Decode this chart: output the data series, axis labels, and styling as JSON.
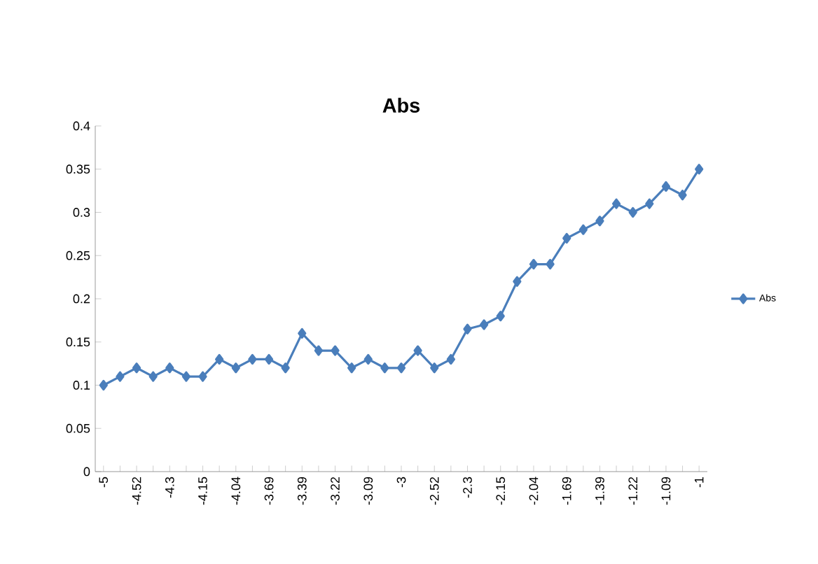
{
  "chart_data": {
    "type": "line",
    "title": "Abs",
    "categories": [
      "-5",
      null,
      "-4.52",
      null,
      "-4.3",
      null,
      "-4.15",
      null,
      "-4.04",
      null,
      "-3.69",
      null,
      "-3.39",
      null,
      "-3.22",
      null,
      "-3.09",
      null,
      "-3",
      null,
      "-2.52",
      null,
      "-2.3",
      null,
      "-2.15",
      null,
      "-2.04",
      null,
      "-1.69",
      null,
      "-1.39",
      null,
      "-1.22",
      null,
      "-1.09",
      null,
      "-1"
    ],
    "series": [
      {
        "name": "Abs",
        "color": "#4a7ebb",
        "values": [
          0.1,
          0.11,
          0.12,
          0.11,
          0.12,
          0.11,
          0.11,
          0.13,
          0.12,
          0.13,
          0.13,
          0.12,
          0.16,
          0.14,
          0.14,
          0.12,
          0.13,
          0.12,
          0.12,
          0.14,
          0.12,
          0.13,
          0.165,
          0.17,
          0.18,
          0.22,
          0.24,
          0.24,
          0.27,
          0.28,
          0.29,
          0.31,
          0.3,
          0.31,
          0.33,
          0.32,
          0.35
        ]
      }
    ],
    "ylim": [
      0,
      0.4
    ],
    "yticks": [
      0,
      0.05,
      0.1,
      0.15,
      0.2,
      0.25,
      0.3,
      0.35,
      0.4
    ],
    "legend": "right",
    "marker": "diamond",
    "line_style": "solid",
    "grid": false
  }
}
